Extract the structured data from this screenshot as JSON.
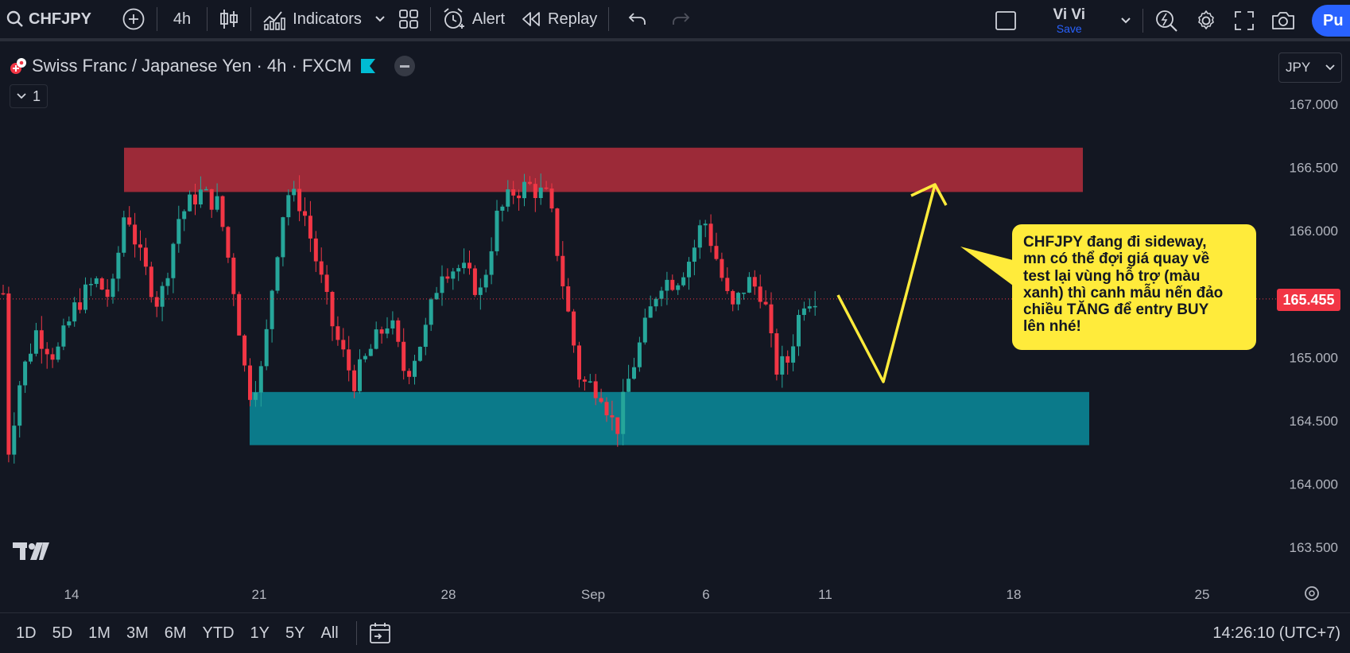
{
  "toolbar": {
    "symbol": "CHFJPY",
    "interval": "4h",
    "indicators_label": "Indicators",
    "alert_label": "Alert",
    "replay_label": "Replay",
    "user_name": "Vi Vi",
    "save_label": "Save",
    "publish_label": "Pu"
  },
  "legend": {
    "title": "Swiss Franc / Japanese Yen · 4h · FXCM",
    "indicator_count": "1"
  },
  "currency": "JPY",
  "price_axis": {
    "ticks": [
      "167.000",
      "166.500",
      "166.000",
      "165.500",
      "165.000",
      "164.500",
      "164.000",
      "163.500"
    ],
    "current_price": "165.455"
  },
  "time_axis": {
    "ticks": [
      "14",
      "21",
      "28",
      "Sep",
      "6",
      "11",
      "18",
      "25"
    ]
  },
  "chart_data": {
    "type": "candlestick",
    "y_range": [
      163.3,
      167.3
    ],
    "current_price": 165.455,
    "resistance_zone": [
      166.3,
      166.65
    ],
    "support_zone": [
      164.3,
      164.72
    ],
    "colors": {
      "up": "#26a69a",
      "down": "#f23645",
      "resistance": "#9c2a38",
      "support": "#0b7a8a",
      "annotation": "#ffeb3b"
    }
  },
  "annotation": {
    "lines": [
      "CHFJPY đang đi sideway,",
      "mn có thể đợi giá quay về",
      "test lại vùng hỗ trợ (màu",
      "xanh) thì canh mẫu nến đảo",
      "chiều TĂNG để entry BUY",
      "lên nhé!"
    ]
  },
  "ranges": [
    "1D",
    "5D",
    "1M",
    "3M",
    "6M",
    "YTD",
    "1Y",
    "5Y",
    "All"
  ],
  "clock": "14:26:10 (UTC+7)"
}
